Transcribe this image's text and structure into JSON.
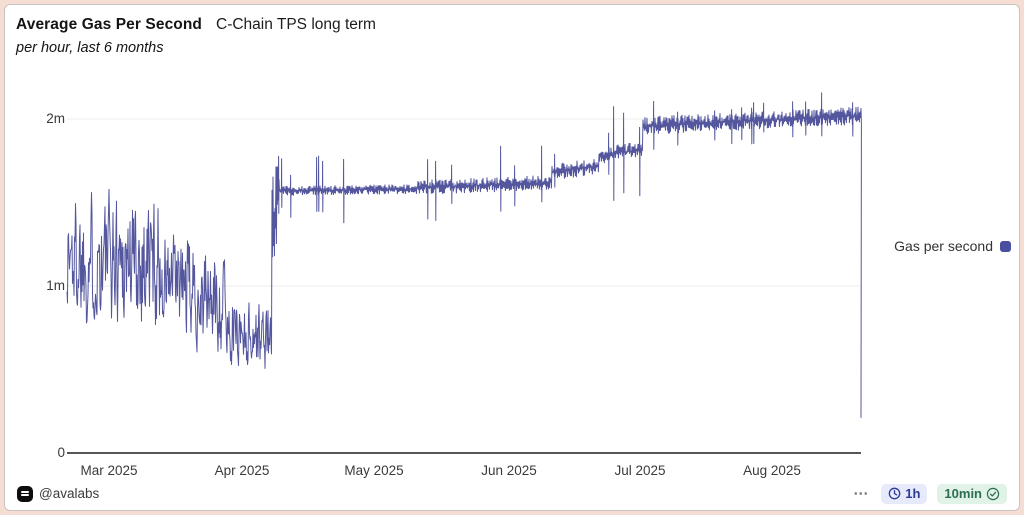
{
  "header": {
    "title": "Average Gas Per Second",
    "title_suffix": "C-Chain TPS long term",
    "subtitle": "per hour, last 6 months"
  },
  "legend": {
    "label": "Gas per second",
    "marker_color": "#4a4fa0"
  },
  "footer": {
    "attribution": "@avalabs",
    "menu_label": "⋯",
    "interval_button": {
      "label": "1h",
      "icon": "clock-icon",
      "text_color": "#2c3a94",
      "bg_color": "#e7eafb"
    },
    "freshness_button": {
      "label": "10min",
      "icon": "check-circle-icon",
      "text_color": "#2c6e4f",
      "bg_color": "#e1f2e7"
    }
  },
  "colors": {
    "line": "#54579e",
    "grid": "#ececec",
    "axis": "#1f1f1f",
    "card_background": "#ffffff",
    "frame_border": "#f6ddd4"
  },
  "chart_data": {
    "type": "line",
    "title": "Average Gas Per Second — C-Chain TPS long term",
    "series_name": "Gas per second",
    "x_range": [
      "2025-02-20",
      "2025-08-22"
    ],
    "xticks": [
      "Mar 2025",
      "Apr 2025",
      "May 2025",
      "Jun 2025",
      "Jul 2025",
      "Aug 2025"
    ],
    "yticks": [
      {
        "value": 0,
        "label": "0"
      },
      {
        "value": 1,
        "label": "1m"
      },
      {
        "value": 2,
        "label": "2m"
      }
    ],
    "ylim": [
      0,
      2.3
    ],
    "unit": "gas per second (millions)",
    "grid": "horizontal",
    "legend_position": "right",
    "trend_points": [
      [
        "2025-02-20",
        1.2
      ],
      [
        "2025-03-01",
        1.18
      ],
      [
        "2025-03-10",
        1.12
      ],
      [
        "2025-03-18",
        0.95
      ],
      [
        "2025-03-26",
        0.8
      ],
      [
        "2025-04-04",
        0.7
      ],
      [
        "2025-04-08",
        1.6
      ],
      [
        "2025-04-20",
        1.58
      ],
      [
        "2025-05-01",
        1.58
      ],
      [
        "2025-05-20",
        1.6
      ],
      [
        "2025-06-01",
        1.6
      ],
      [
        "2025-06-12",
        1.62
      ],
      [
        "2025-06-18",
        1.7
      ],
      [
        "2025-06-26",
        1.8
      ],
      [
        "2025-07-01",
        1.96
      ],
      [
        "2025-07-15",
        1.98
      ],
      [
        "2025-08-01",
        2.0
      ],
      [
        "2025-08-20",
        2.02
      ],
      [
        "2025-08-22",
        0.21
      ]
    ],
    "segments": [
      {
        "mode": "walk",
        "from": 0.0,
        "to": 0.115,
        "mean_from": 1.18,
        "mean_to": 1.15,
        "amp": 0.52,
        "spike_prob": 0,
        "spike_amp": 0
      },
      {
        "mode": "walk",
        "from": 0.115,
        "to": 0.2,
        "mean_from": 1.05,
        "mean_to": 0.88,
        "amp": 0.4,
        "spike_prob": 0,
        "spike_amp": 0
      },
      {
        "mode": "walk",
        "from": 0.2,
        "to": 0.257,
        "mean_from": 0.75,
        "mean_to": 0.68,
        "amp": 0.27,
        "spike_prob": 0,
        "spike_amp": 0
      },
      {
        "mode": "band",
        "from": 0.257,
        "to": 0.268,
        "mean_from": 1.35,
        "mean_to": 1.6,
        "amp": 0.26,
        "spike_prob": 0.3,
        "spike_amp": 0.28
      },
      {
        "mode": "band",
        "from": 0.268,
        "to": 0.44,
        "mean_from": 1.57,
        "mean_to": 1.58,
        "amp": 0.03,
        "spike_prob": 0.04,
        "spike_amp": 0.22
      },
      {
        "mode": "band",
        "from": 0.44,
        "to": 0.61,
        "mean_from": 1.59,
        "mean_to": 1.62,
        "amp": 0.045,
        "spike_prob": 0.05,
        "spike_amp": 0.25
      },
      {
        "mode": "band",
        "from": 0.61,
        "to": 0.67,
        "mean_from": 1.68,
        "mean_to": 1.72,
        "amp": 0.05,
        "spike_prob": 0.04,
        "spike_amp": 0.18
      },
      {
        "mode": "band",
        "from": 0.67,
        "to": 0.725,
        "mean_from": 1.78,
        "mean_to": 1.82,
        "amp": 0.05,
        "spike_prob": 0.06,
        "spike_amp": 0.3
      },
      {
        "mode": "band",
        "from": 0.725,
        "to": 1.0,
        "mean_from": 1.96,
        "mean_to": 2.02,
        "amp": 0.055,
        "spike_prob": 0.05,
        "spike_amp": 0.17
      }
    ],
    "end_drop": {
      "x": 1.0,
      "value": 0.21
    }
  }
}
